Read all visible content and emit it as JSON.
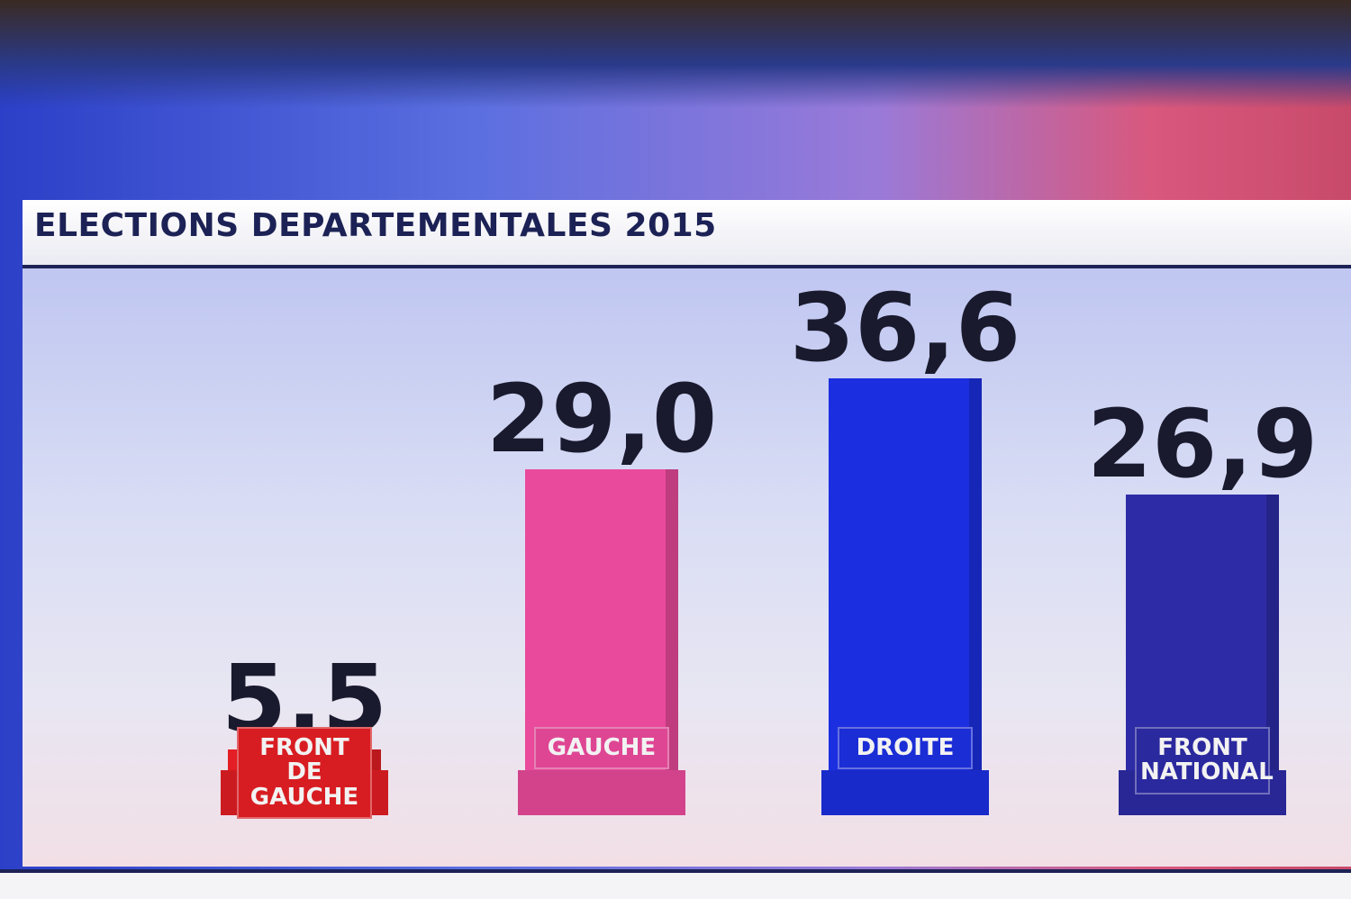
{
  "chart_data": {
    "type": "bar",
    "title": "ELECTIONS DEPARTEMENTALES 2015",
    "categories": [
      "FRONT DE GAUCHE",
      "GAUCHE",
      "DROITE",
      "FRONT NATIONAL"
    ],
    "values": [
      5.5,
      29.0,
      36.6,
      26.9
    ],
    "value_labels": [
      "5,5",
      "29,0",
      "36,6",
      "26,9"
    ],
    "colors": [
      "#e31e24",
      "#ea4a9c",
      "#1c2fe0",
      "#2d2ba6"
    ],
    "ylim": [
      0,
      40
    ]
  }
}
